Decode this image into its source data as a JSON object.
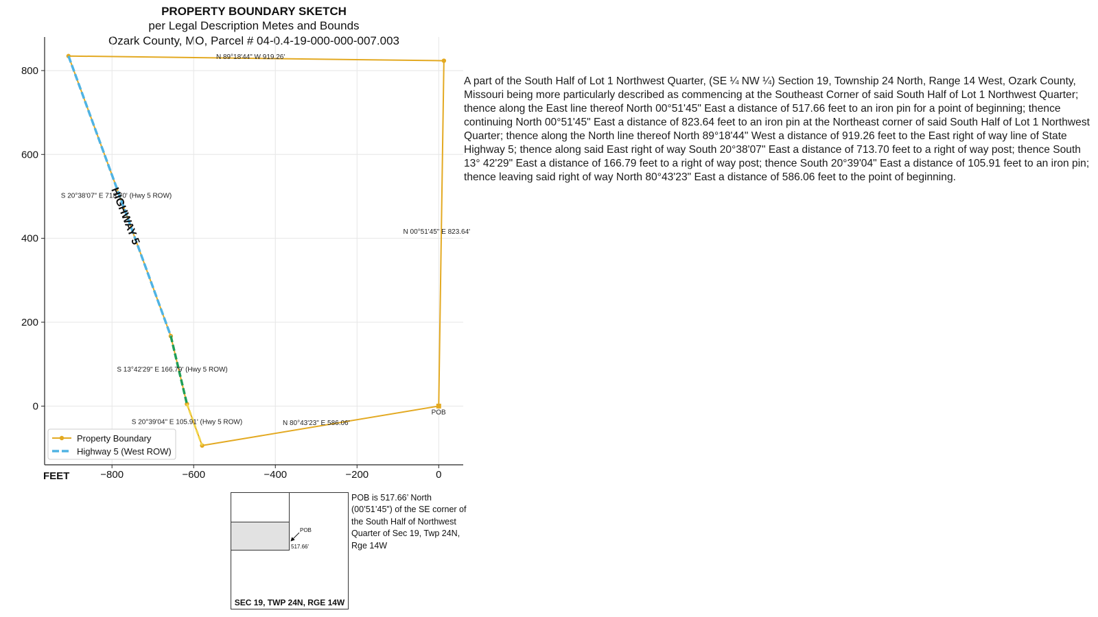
{
  "title": {
    "line1": "PROPERTY BOUNDARY SKETCH",
    "line2": "per Legal Description Metes and Bounds",
    "line3": "Ozark County, MO, Parcel # 04-0.4-19-000-000-007.003"
  },
  "chart_data": {
    "type": "line",
    "xlim": [
      -965,
      60
    ],
    "ylim": [
      -140,
      880
    ],
    "x_ticks": [
      -800,
      -600,
      -400,
      -200,
      0
    ],
    "x_tick_labels": [
      "−800",
      "−600",
      "−400",
      "−200",
      "0"
    ],
    "y_ticks": [
      0,
      200,
      400,
      600,
      800
    ],
    "y_tick_labels": [
      "0",
      "200",
      "400",
      "600",
      "800"
    ],
    "x_unit_label": "FEET",
    "grid": true,
    "legend_position": "lower-left",
    "colors": {
      "boundary": "#E3A921",
      "row_highway": "#4FB3E3",
      "row_green": "#1F9E57",
      "row_yellow": "#F2D64A",
      "grid": "#e6e6e6"
    },
    "series": [
      {
        "name": "Property Boundary",
        "x": [
          0,
          12.7,
          -906.5,
          -656.0,
          -616.5,
          -579.3,
          0
        ],
        "y": [
          0,
          823.5,
          834.7,
          166.9,
          5.0,
          -94.1,
          0
        ]
      },
      {
        "name": "Highway 5 (West ROW)",
        "x": [
          -906.5,
          -656.0
        ],
        "y": [
          834.7,
          166.9
        ]
      }
    ],
    "green_segment": {
      "x": [
        -656.0,
        -616.5
      ],
      "y": [
        166.9,
        5.0
      ]
    },
    "yellow_segment": {
      "x": [
        -616.5,
        -579.3
      ],
      "y": [
        5.0,
        -94.1
      ]
    },
    "highway_label": "HIGHWAY 5",
    "annotations": [
      {
        "text": "N 89°18'44\" W 919.26'",
        "x": -545,
        "y": 828
      },
      {
        "text": "S 20°38'07\" E 713.70'  (Hwy 5 ROW)",
        "x": -925,
        "y": 497
      },
      {
        "text": "N 00°51'45\" E 823.64'",
        "x": -87,
        "y": 411
      },
      {
        "text": "S 13°42'29\" E 166.79'  (Hwy 5 ROW)",
        "x": -788,
        "y": 82
      },
      {
        "text": "S 20°39'04\" E 105.91'  (Hwy 5 ROW)",
        "x": -752,
        "y": -43
      },
      {
        "text": "N 80°43'23\" E 586.06'",
        "x": -382,
        "y": -45
      },
      {
        "text": "POB",
        "x": -18,
        "y": -20
      }
    ]
  },
  "legal_description": "A part of the South Half of Lot 1 Northwest Quarter, (SE ¼ NW ¼) Section 19, Township 24 North, Range 14 West, Ozark County, Missouri being more particularly described as commencing at the Southeast Corner of said South Half of Lot 1 Northwest Quarter; thence along the East line thereof North 00°51'45\" East a distance of 517.66 feet to an iron pin for a point of beginning; thence continuing North 00°51'45\" East a distance of 823.64 feet to an iron pin at the Northeast corner of said South Half of Lot 1 Northwest Quarter; thence along the North line thereof North 89°18'44\" West a distance of 919.26 feet to the East right of way line of State Highway 5; thence along said East right of way South 20°38'07\" East a distance of 713.70 feet to a right of way post; thence South 13° 42'29\" East a distance of 166.79 feet to a right of way post; thence South 20°39'04\" East a distance of 105.91 feet to an iron pin; thence leaving said right of way North 80°43'23\" East a distance of 586.06 feet to the point of beginning.",
  "inset": {
    "section_label": "SEC 19, TWP 24N, RGE 14W",
    "pob_label": "POB",
    "distance_label": "517.66'",
    "note": "POB is 517.66’ North (00’51’45”) of the SE corner of the South Half of Northwest Quarter of Sec 19, Twp 24N, Rge 14W"
  }
}
